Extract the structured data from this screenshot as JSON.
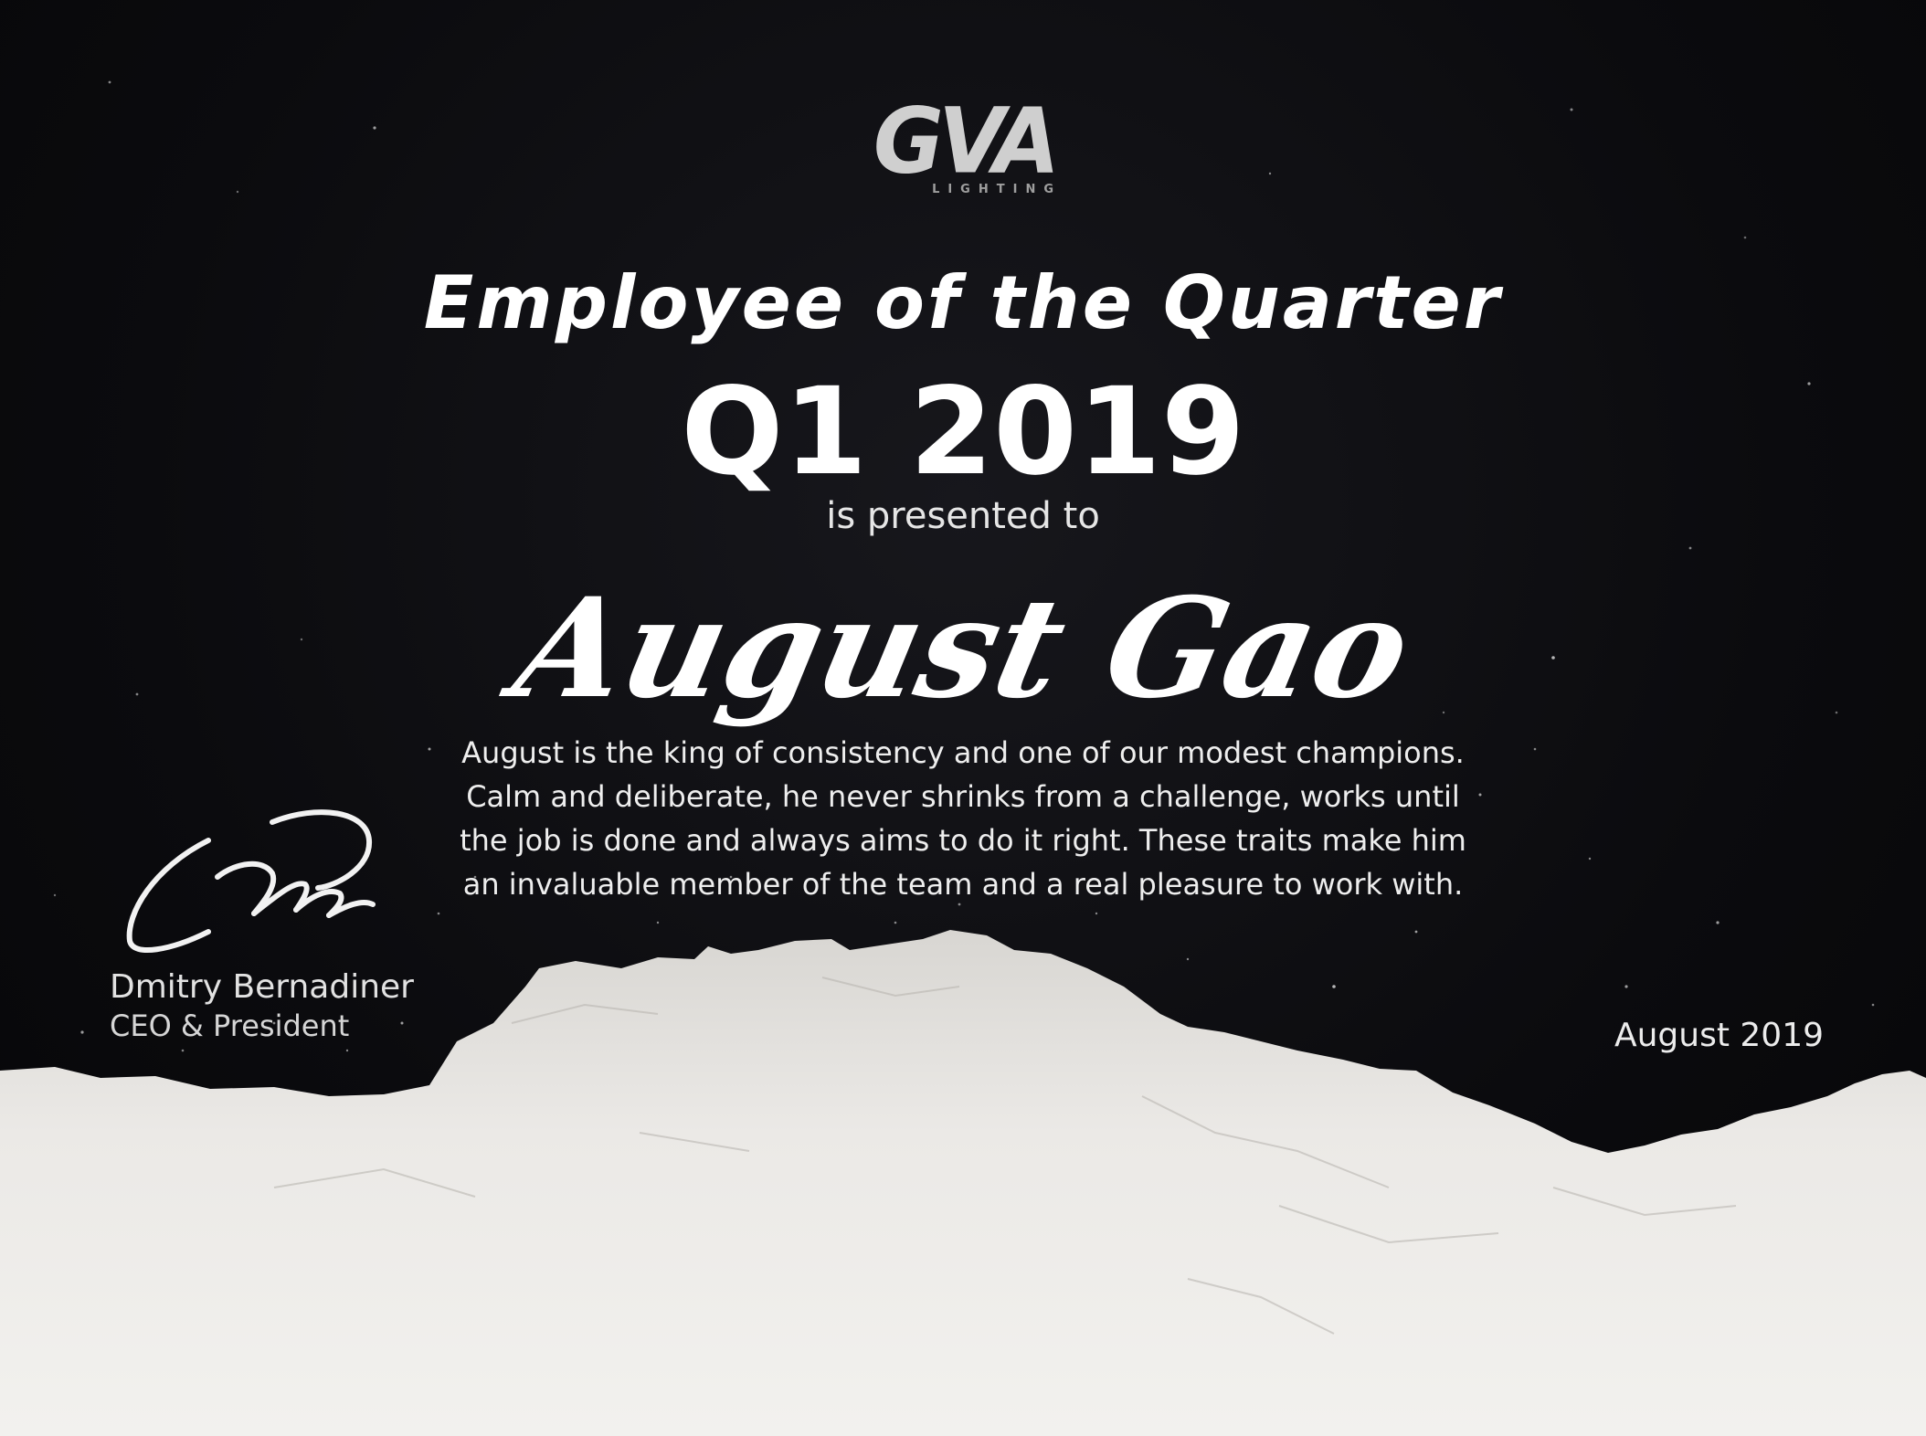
{
  "logo": {
    "mark": "GVA",
    "subtext": "LIGHTING"
  },
  "award": {
    "title": "Employee of the Quarter",
    "period": "Q1 2019",
    "presented_text": "is presented to",
    "recipient": "August Gao",
    "citation_lines": [
      "August is the king of consistency and one of our modest champions.",
      "Calm and deliberate, he never shrinks from a challenge, works until",
      "the job is done and always aims to do it right. These traits make him",
      "an invaluable member of the team and a real pleasure to work with."
    ]
  },
  "signatory": {
    "name": "Dmitry Bernadiner",
    "role": "CEO & President"
  },
  "date": "August 2019",
  "colors": {
    "background": "#0d0d10",
    "text": "#ffffff",
    "terrain": "#e9e7e4"
  }
}
